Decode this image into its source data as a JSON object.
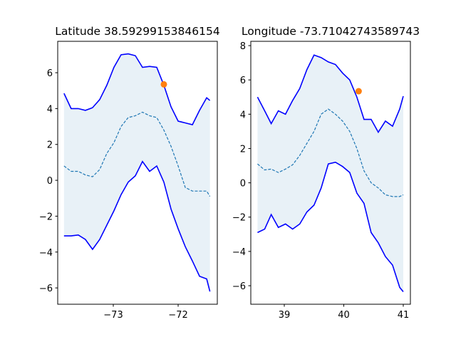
{
  "chart_data": [
    {
      "type": "line",
      "title": "Latitude 38.59299153846154",
      "x": [
        -73.76,
        -73.65,
        -73.54,
        -73.43,
        -73.32,
        -73.21,
        -73.1,
        -72.99,
        -72.88,
        -72.77,
        -72.66,
        -72.55,
        -72.44,
        -72.33,
        -72.22,
        -72.11,
        -72.0,
        -71.89,
        -71.78,
        -71.67,
        -71.56,
        -71.51
      ],
      "series": [
        {
          "color": "#0000ff",
          "values": [
            4.85,
            4.0,
            4.0,
            3.9,
            4.05,
            4.5,
            5.3,
            6.3,
            7.0,
            7.05,
            6.95,
            6.3,
            6.35,
            6.3,
            5.3,
            4.1,
            3.3,
            3.2,
            3.1,
            3.9,
            4.6,
            4.45
          ]
        },
        {
          "color": "#1f77b4",
          "dashed": true,
          "values": [
            0.8,
            0.5,
            0.5,
            0.3,
            0.2,
            0.6,
            1.5,
            2.1,
            3.0,
            3.5,
            3.6,
            3.8,
            3.6,
            3.5,
            2.8,
            1.9,
            0.8,
            -0.4,
            -0.6,
            -0.6,
            -0.6,
            -0.9
          ]
        },
        {
          "color": "#0000ff",
          "values": [
            -3.1,
            -3.1,
            -3.05,
            -3.3,
            -3.85,
            -3.3,
            -2.5,
            -1.7,
            -0.8,
            -0.1,
            0.25,
            1.05,
            0.5,
            0.8,
            -0.1,
            -1.6,
            -2.7,
            -3.7,
            -4.5,
            -5.35,
            -5.5,
            -6.2
          ]
        }
      ],
      "fill_color": "#1f77b4",
      "points": [
        {
          "x": -72.22,
          "y": 5.35,
          "color": "#ff7f0e"
        }
      ],
      "xlim": [
        -73.857,
        -71.396
      ],
      "ylim": [
        -6.91,
        7.75
      ],
      "xticks": [
        {
          "value": -73,
          "label": "−73"
        },
        {
          "value": -72,
          "label": "−72"
        }
      ],
      "yticks": [
        {
          "value": -6,
          "label": "−6"
        },
        {
          "value": -4,
          "label": "−4"
        },
        {
          "value": -2,
          "label": "−2"
        },
        0,
        2,
        4,
        6
      ]
    },
    {
      "type": "line",
      "title": "Longitude -73.71042743589743",
      "x": [
        38.55,
        38.67,
        38.78,
        38.9,
        39.02,
        39.14,
        39.26,
        39.38,
        39.5,
        39.62,
        39.74,
        39.86,
        39.98,
        40.1,
        40.22,
        40.34,
        40.46,
        40.58,
        40.7,
        40.82,
        40.94,
        41.0
      ],
      "series": [
        {
          "color": "#0000ff",
          "values": [
            5.0,
            4.2,
            3.45,
            4.2,
            4.0,
            4.8,
            5.5,
            6.6,
            7.45,
            7.3,
            7.05,
            6.9,
            6.4,
            6.0,
            5.0,
            3.7,
            3.7,
            2.95,
            3.6,
            3.3,
            4.3,
            5.05
          ]
        },
        {
          "color": "#1f77b4",
          "dashed": true,
          "values": [
            1.1,
            0.75,
            0.8,
            0.6,
            0.8,
            1.05,
            1.6,
            2.3,
            3.0,
            4.0,
            4.3,
            4.0,
            3.6,
            3.0,
            2.0,
            0.7,
            0.0,
            -0.3,
            -0.7,
            -0.8,
            -0.8,
            -0.7
          ]
        },
        {
          "color": "#0000ff",
          "values": [
            -2.9,
            -2.7,
            -1.85,
            -2.6,
            -2.4,
            -2.7,
            -2.4,
            -1.7,
            -1.3,
            -0.3,
            1.1,
            1.2,
            0.95,
            0.6,
            -0.6,
            -1.2,
            -2.9,
            -3.5,
            -4.3,
            -4.8,
            -6.1,
            -6.35
          ]
        }
      ],
      "fill_color": "#1f77b4",
      "points": [
        {
          "x": 40.25,
          "y": 5.34,
          "color": "#ff7f0e"
        }
      ],
      "xlim": [
        38.437,
        41.12
      ],
      "ylim": [
        -7.08,
        8.25
      ],
      "xticks": [
        39,
        40,
        41
      ],
      "yticks": [
        {
          "value": -6,
          "label": "−6"
        },
        {
          "value": -4,
          "label": "−4"
        },
        {
          "value": -2,
          "label": "−2"
        },
        0,
        2,
        4,
        6,
        8
      ]
    }
  ]
}
